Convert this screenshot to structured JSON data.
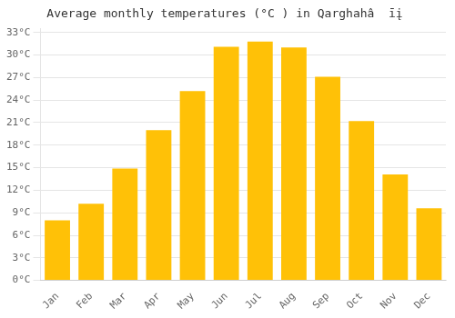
{
  "chart_data": {
    "type": "bar",
    "title": "Average monthly temperatures (°C ) in Qarghahâ  īį",
    "categories": [
      "Jan",
      "Feb",
      "Mar",
      "Apr",
      "May",
      "Jun",
      "Jul",
      "Aug",
      "Sep",
      "Oct",
      "Nov",
      "Dec"
    ],
    "values": [
      8.0,
      10.2,
      14.9,
      20.0,
      25.2,
      31.1,
      31.8,
      31.0,
      27.1,
      21.2,
      14.1,
      9.6
    ],
    "color": "#FFC107",
    "ylim": [
      0,
      33.5
    ],
    "yticks": [
      {
        "value": 0,
        "label": "0°C"
      },
      {
        "value": 3,
        "label": "3°C"
      },
      {
        "value": 6,
        "label": "6°C"
      },
      {
        "value": 9,
        "label": "9°C"
      },
      {
        "value": 12,
        "label": "12°C"
      },
      {
        "value": 15,
        "label": "15°C"
      },
      {
        "value": 18,
        "label": "18°C"
      },
      {
        "value": 21,
        "label": "21°C"
      },
      {
        "value": 24,
        "label": "24°C"
      },
      {
        "value": 27,
        "label": "27°C"
      },
      {
        "value": 30,
        "label": "30°C"
      },
      {
        "value": 33,
        "label": "33°C"
      }
    ],
    "grid": true
  }
}
